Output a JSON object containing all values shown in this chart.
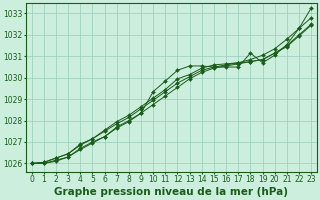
{
  "background_color": "#cceedd",
  "grid_color": "#99ccbb",
  "line_color": "#1a5c1a",
  "marker_color": "#1a5c1a",
  "xlabel": "Graphe pression niveau de la mer (hPa)",
  "xlabel_fontsize": 7.5,
  "xlabel_color": "#1a5c1a",
  "ylabel_ticks": [
    1026,
    1027,
    1028,
    1029,
    1030,
    1031,
    1032,
    1033
  ],
  "xlim": [
    -0.5,
    23.5
  ],
  "ylim": [
    1025.6,
    1033.5
  ],
  "xticks": [
    0,
    1,
    2,
    3,
    4,
    5,
    6,
    7,
    8,
    9,
    10,
    11,
    12,
    13,
    14,
    15,
    16,
    17,
    18,
    19,
    20,
    21,
    22,
    23
  ],
  "series": [
    [
      1026.0,
      1026.0,
      1026.1,
      1026.3,
      1026.7,
      1027.0,
      1027.25,
      1027.7,
      1028.0,
      1028.35,
      1029.35,
      1029.85,
      1030.35,
      1030.55,
      1030.55,
      1030.5,
      1030.5,
      1030.5,
      1031.15,
      1030.7,
      1031.05,
      1031.55,
      1032.3,
      1033.25
    ],
    [
      1026.0,
      1026.05,
      1026.25,
      1026.45,
      1026.85,
      1027.15,
      1027.5,
      1027.85,
      1028.15,
      1028.55,
      1028.95,
      1029.35,
      1029.75,
      1030.05,
      1030.35,
      1030.5,
      1030.6,
      1030.7,
      1030.85,
      1031.05,
      1031.35,
      1031.8,
      1032.3,
      1032.8
    ],
    [
      1026.0,
      1026.05,
      1026.25,
      1026.45,
      1026.9,
      1027.15,
      1027.55,
      1027.95,
      1028.25,
      1028.65,
      1029.05,
      1029.45,
      1029.95,
      1030.15,
      1030.45,
      1030.6,
      1030.65,
      1030.7,
      1030.75,
      1030.85,
      1031.15,
      1031.5,
      1032.0,
      1032.5
    ],
    [
      1026.0,
      1026.0,
      1026.15,
      1026.3,
      1026.65,
      1026.95,
      1027.25,
      1027.65,
      1027.95,
      1028.35,
      1028.75,
      1029.15,
      1029.55,
      1029.95,
      1030.25,
      1030.45,
      1030.55,
      1030.65,
      1030.75,
      1030.85,
      1031.15,
      1031.45,
      1031.95,
      1032.45
    ]
  ],
  "tick_fontsize": 5.5,
  "tick_color": "#1a5c1a",
  "figsize": [
    3.2,
    2.0
  ],
  "dpi": 100
}
